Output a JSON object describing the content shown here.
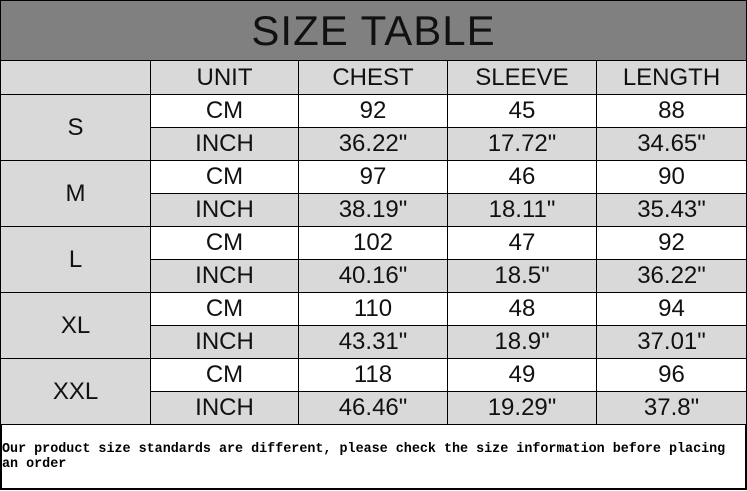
{
  "title": "SIZE TABLE",
  "headers": [
    "UNIT",
    "CHEST",
    "SLEEVE",
    "LENGTH"
  ],
  "rows": [
    {
      "size": "S",
      "cm": {
        "unit": "CM",
        "chest": "92",
        "sleeve": "45",
        "length": "88"
      },
      "inch": {
        "unit": "INCH",
        "chest": "36.22\"",
        "sleeve": "17.72\"",
        "length": "34.65\""
      }
    },
    {
      "size": "M",
      "cm": {
        "unit": "CM",
        "chest": "97",
        "sleeve": "46",
        "length": "90"
      },
      "inch": {
        "unit": "INCH",
        "chest": "38.19\"",
        "sleeve": "18.11\"",
        "length": "35.43\""
      }
    },
    {
      "size": "L",
      "cm": {
        "unit": "CM",
        "chest": "102",
        "sleeve": "47",
        "length": "92"
      },
      "inch": {
        "unit": "INCH",
        "chest": "40.16\"",
        "sleeve": "18.5\"",
        "length": "36.22\""
      }
    },
    {
      "size": "XL",
      "cm": {
        "unit": "CM",
        "chest": "110",
        "sleeve": "48",
        "length": "94"
      },
      "inch": {
        "unit": "INCH",
        "chest": "43.31\"",
        "sleeve": "18.9\"",
        "length": "37.01\""
      }
    },
    {
      "size": "XXL",
      "cm": {
        "unit": "CM",
        "chest": "118",
        "sleeve": "49",
        "length": "96"
      },
      "inch": {
        "unit": "INCH",
        "chest": "46.46\"",
        "sleeve": "19.29\"",
        "length": "37.8\""
      }
    }
  ],
  "footer": "Our product size standards are different, please check the size information before placing an order",
  "colors": {
    "title_bg": "#808080",
    "shaded": "#d9d9d9"
  }
}
